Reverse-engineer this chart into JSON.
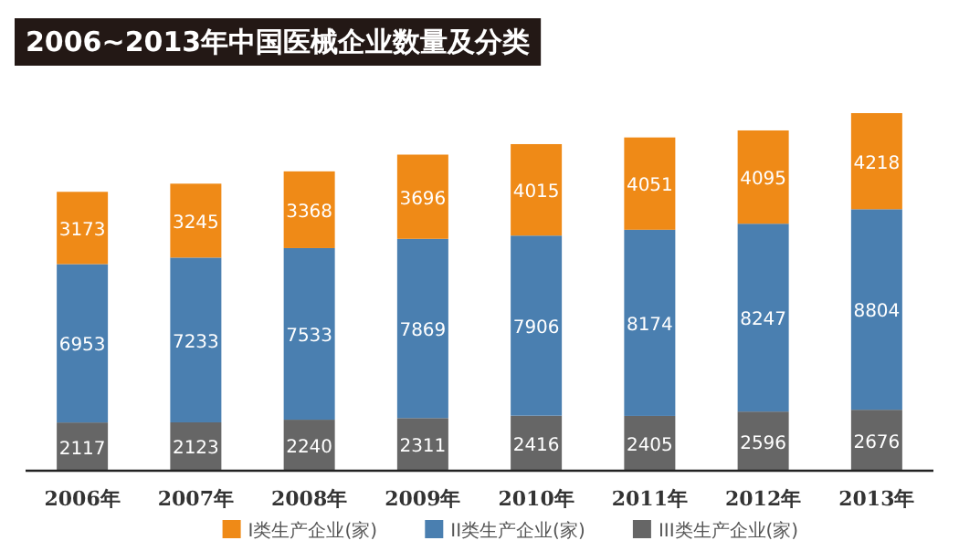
{
  "chart_data": {
    "type": "bar",
    "stacked": true,
    "title": "2006~2013年中国医械企业数量及分类",
    "categories": [
      "2006年",
      "2007年",
      "2008年",
      "2009年",
      "2010年",
      "2011年",
      "2012年",
      "2013年"
    ],
    "series": [
      {
        "name": "III类生产企业(家)",
        "color": "#666666",
        "values": [
          2117,
          2123,
          2240,
          2311,
          2416,
          2405,
          2596,
          2676
        ]
      },
      {
        "name": "II类生产企业(家)",
        "color": "#4a7fb0",
        "values": [
          6953,
          7233,
          7533,
          7869,
          7906,
          8174,
          8247,
          8804
        ]
      },
      {
        "name": "I类生产企业(家)",
        "color": "#ef8a17",
        "values": [
          3173,
          3245,
          3368,
          3696,
          4015,
          4051,
          4095,
          4218
        ]
      }
    ],
    "data_labels": true,
    "legend": "bottom"
  }
}
